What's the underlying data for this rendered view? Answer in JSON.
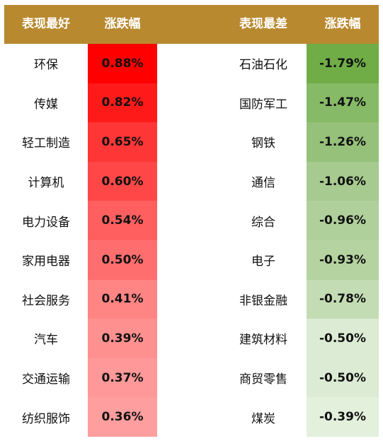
{
  "header": {
    "best_label": "表现最好",
    "change_label_left": "涨跌幅",
    "worst_label": "表现最差",
    "change_label_right": "涨跌幅"
  },
  "colors": {
    "header_bg": "#b8892f",
    "best_scale": [
      "#ff0000",
      "#ff1a1a",
      "#ff3636",
      "#ff4747",
      "#ff5f5f",
      "#ff6e6e",
      "#ff8484",
      "#ff9090",
      "#ff9898",
      "#ff9e9e"
    ],
    "worst_scale": [
      "#70ad47",
      "#86ba66",
      "#95c17a",
      "#a6ca8f",
      "#b0d09b",
      "#b4d3a0",
      "#c4dcb4",
      "#dcebd3",
      "#dcebd3",
      "#e3f0dc"
    ]
  },
  "best": [
    {
      "name": "环保",
      "change": "0.88%"
    },
    {
      "name": "传媒",
      "change": "0.82%"
    },
    {
      "name": "轻工制造",
      "change": "0.65%"
    },
    {
      "name": "计算机",
      "change": "0.60%"
    },
    {
      "name": "电力设备",
      "change": "0.54%"
    },
    {
      "name": "家用电器",
      "change": "0.50%"
    },
    {
      "name": "社会服务",
      "change": "0.41%"
    },
    {
      "name": "汽车",
      "change": "0.39%"
    },
    {
      "name": "交通运输",
      "change": "0.37%"
    },
    {
      "name": "纺织服饰",
      "change": "0.36%"
    }
  ],
  "worst": [
    {
      "name": "石油石化",
      "change": "-1.79%"
    },
    {
      "name": "国防军工",
      "change": "-1.47%"
    },
    {
      "name": "钢铁",
      "change": "-1.26%"
    },
    {
      "name": "通信",
      "change": "-1.06%"
    },
    {
      "name": "综合",
      "change": "-0.96%"
    },
    {
      "name": "电子",
      "change": "-0.93%"
    },
    {
      "name": "非银金融",
      "change": "-0.78%"
    },
    {
      "name": "建筑材料",
      "change": "-0.50%"
    },
    {
      "name": "商贸零售",
      "change": "-0.50%"
    },
    {
      "name": "煤炭",
      "change": "-0.39%"
    }
  ]
}
